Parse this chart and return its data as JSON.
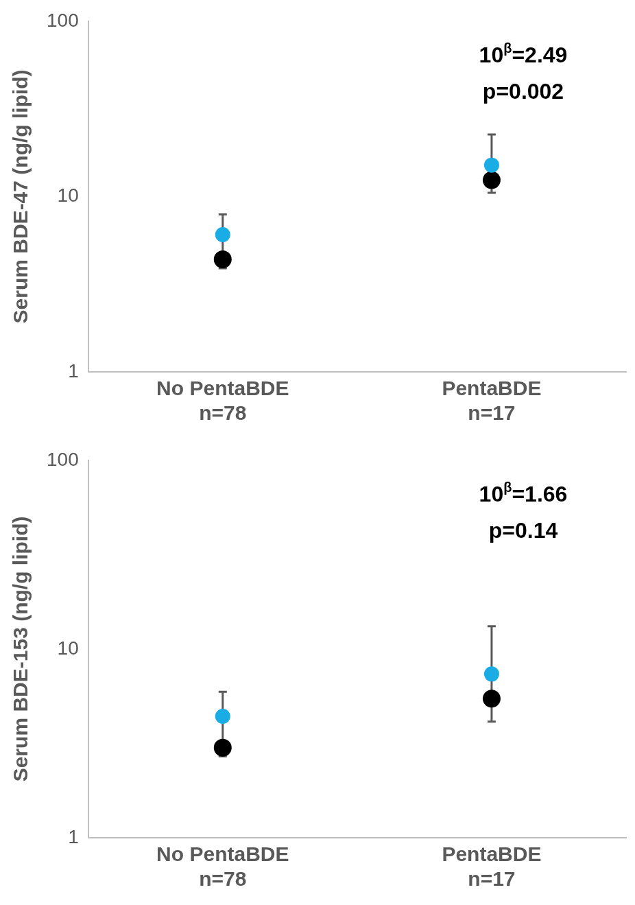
{
  "chart_data": [
    {
      "type": "scatter",
      "ylabel": "Serum BDE-47 (ng/g lipid)",
      "categories": [
        "No PentaBDE\nn=78",
        "PentaBDE\nn=17"
      ],
      "log": true,
      "ylim": [
        1,
        100
      ],
      "yticks": [
        1,
        10,
        100
      ],
      "grid": false,
      "legend": false,
      "marker": "circle",
      "series": [
        {
          "color": "#1aace4",
          "values": [
            6.06,
            15.1
          ]
        },
        {
          "color": "#000000",
          "values": [
            4.38,
            12.4
          ],
          "errors": [
            [
              3.9,
              7.9
            ],
            [
              10.5,
              22.6
            ]
          ]
        }
      ],
      "annotations": [
        "10$^{β}$=2.49",
        "p=0.002"
      ]
    },
    {
      "type": "scatter",
      "ylabel": "Serum BDE-153 (ng/g lipid)",
      "categories": [
        "No PentaBDE\nn=78",
        "PentaBDE\nn=17"
      ],
      "log": true,
      "ylim": [
        1,
        100
      ],
      "yticks": [
        1,
        10,
        100
      ],
      "grid": false,
      "legend": false,
      "marker": "circle",
      "series": [
        {
          "color": "#1aace4",
          "values": [
            4.4,
            7.37
          ]
        },
        {
          "color": "#000000",
          "values": [
            3.0,
            5.46
          ],
          "errors": [
            [
              2.7,
              5.94
            ],
            [
              4.12,
              13.2
            ]
          ]
        }
      ],
      "annotations": [
        "10$^{β}$=1.66",
        "p=0.14"
      ]
    }
  ]
}
